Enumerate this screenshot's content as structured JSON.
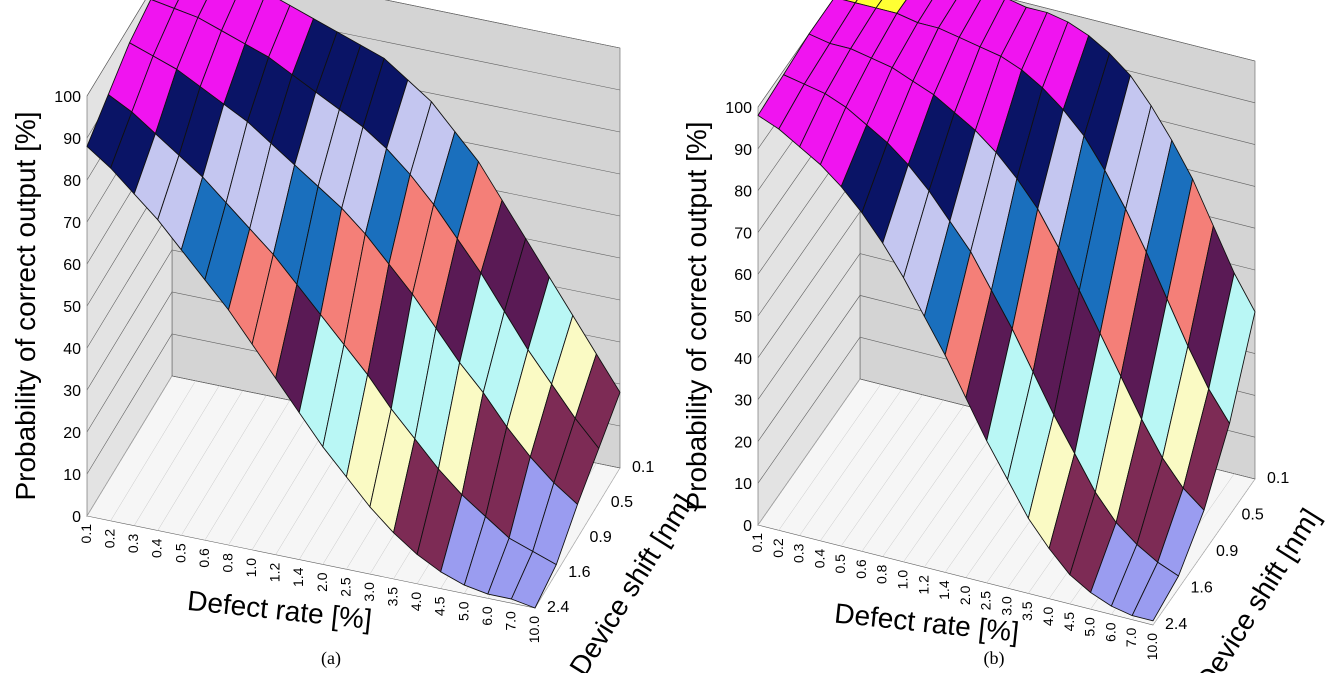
{
  "colors": {
    "plane_back": "#d4d4d4",
    "plane_floor": "#f6f6f6",
    "grid": "#606060",
    "mesh": "#111111",
    "bands": [
      "#9a9cf0",
      "#7d2b55",
      "#fafac4",
      "#b9f7f5",
      "#5a1a55",
      "#f47f78",
      "#1a6fbd",
      "#c4c6f0",
      "#0a1466",
      "#f014f0",
      "#ffff33"
    ]
  },
  "chart_data": [
    {
      "type": "surface3d",
      "panel": "a",
      "caption": "(a)",
      "zlabel": "Probability of correct output [%]",
      "xlabel": "Defect rate [%]",
      "ylabel": "Device shift [nm]",
      "zlim": [
        0,
        100
      ],
      "z_ticks": [
        "0",
        "10",
        "20",
        "30",
        "40",
        "50",
        "60",
        "70",
        "80",
        "90",
        "100"
      ],
      "x_ticks": [
        "0.1",
        "0.2",
        "0.3",
        "0.4",
        "0.5",
        "0.6",
        "0.8",
        "1.0",
        "1.2",
        "1.4",
        "2.0",
        "2.5",
        "3.0",
        "3.5",
        "4.0",
        "4.5",
        "5.0",
        "6.0",
        "7.0",
        "10.0"
      ],
      "y_ticks": [
        "0.1",
        "0.5",
        "0.9",
        "1.6",
        "2.4"
      ],
      "grid": true,
      "z_rows": [
        [
          99,
          99,
          98,
          97,
          96,
          94,
          92,
          90,
          88,
          86,
          82,
          78,
          72,
          66,
          58,
          50,
          42,
          34,
          26,
          18
        ],
        [
          98,
          97,
          96,
          94,
          92,
          90,
          87,
          84,
          81,
          78,
          74,
          69,
          63,
          56,
          49,
          41,
          33,
          26,
          19,
          13
        ],
        [
          96,
          94,
          92,
          89,
          86,
          83,
          79,
          75,
          71,
          67,
          62,
          56,
          50,
          43,
          36,
          30,
          23,
          17,
          12,
          8
        ],
        [
          92,
          89,
          85,
          81,
          77,
          72,
          67,
          62,
          56,
          50,
          44,
          38,
          31,
          25,
          19,
          14,
          10,
          6,
          4,
          2
        ],
        [
          88,
          84,
          79,
          74,
          68,
          62,
          56,
          49,
          42,
          35,
          28,
          22,
          16,
          11,
          7,
          4,
          2,
          1,
          1,
          0
        ]
      ]
    },
    {
      "type": "surface3d",
      "panel": "b",
      "caption": "(b)",
      "zlabel": "Probability of correct output [%]",
      "xlabel": "Defect rate [%]",
      "ylabel": "Device shift [nm]",
      "zlim": [
        0,
        100
      ],
      "z_ticks": [
        "0",
        "10",
        "20",
        "30",
        "40",
        "50",
        "60",
        "70",
        "80",
        "90",
        "100"
      ],
      "x_ticks": [
        "0.1",
        "0.2",
        "0.3",
        "0.4",
        "0.5",
        "0.6",
        "0.8",
        "1.0",
        "1.2",
        "1.4",
        "2.0",
        "2.5",
        "3.0",
        "3.5",
        "4.0",
        "4.5",
        "5.0",
        "6.0",
        "7.0",
        "10.0"
      ],
      "y_ticks": [
        "0.1",
        "0.5",
        "0.9",
        "1.6",
        "2.4"
      ],
      "grid": true,
      "z_rows": [
        [
          100,
          100,
          100,
          100,
          100,
          100,
          100,
          100,
          99,
          99,
          98,
          96,
          93,
          89,
          83,
          76,
          68,
          58,
          48,
          40
        ],
        [
          100,
          100,
          100,
          100,
          99,
          99,
          98,
          97,
          96,
          94,
          91,
          87,
          82,
          75,
          67,
          58,
          48,
          38,
          29,
          22
        ],
        [
          100,
          99,
          99,
          98,
          97,
          95,
          93,
          90,
          87,
          83,
          78,
          72,
          64,
          55,
          46,
          37,
          28,
          20,
          14,
          10
        ],
        [
          99,
          98,
          97,
          95,
          92,
          89,
          85,
          80,
          74,
          68,
          60,
          52,
          43,
          34,
          26,
          18,
          12,
          8,
          5,
          3
        ],
        [
          98,
          96,
          93,
          90,
          86,
          81,
          75,
          68,
          60,
          52,
          43,
          34,
          26,
          18,
          12,
          7,
          4,
          2,
          1,
          1
        ]
      ]
    }
  ]
}
